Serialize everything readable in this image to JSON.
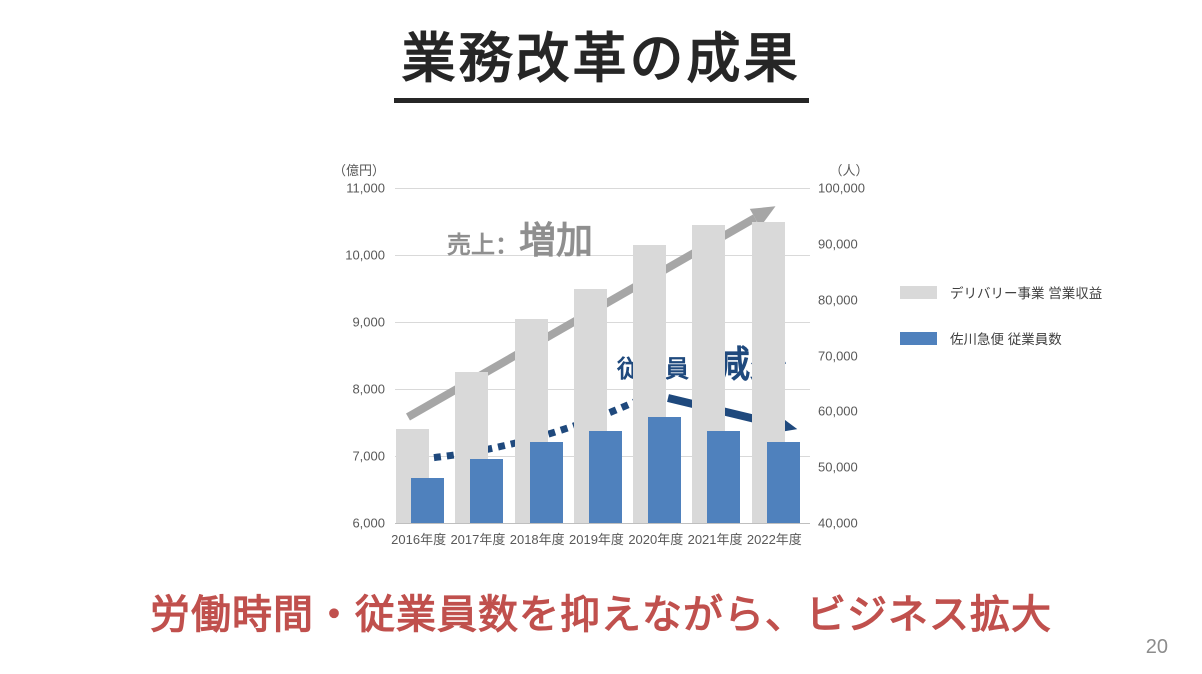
{
  "slide": {
    "title": "業務改革の成果",
    "message": "労働時間・従業員数を抑えながら、ビジネス拡大",
    "page_number": "20"
  },
  "annotations": {
    "sales_prefix": "売上：",
    "sales_emphasis": "増加",
    "employees_prefix": "従業員：",
    "employees_emphasis": "減少"
  },
  "chart_data": {
    "type": "bar",
    "title": "",
    "categories": [
      "2016年度",
      "2017年度",
      "2018年度",
      "2019年度",
      "2020年度",
      "2021年度",
      "2022年度"
    ],
    "series": [
      {
        "name": "デリバリー事業 営業収益",
        "axis": "left",
        "unit": "億円",
        "color": "#d9d9d9",
        "values": [
          7400,
          8250,
          9050,
          9500,
          10150,
          10450,
          10500
        ]
      },
      {
        "name": "佐川急便 従業員数",
        "axis": "right",
        "unit": "人",
        "color": "#4f81bd",
        "values": [
          48000,
          51500,
          54500,
          56500,
          59000,
          56500,
          54500
        ]
      }
    ],
    "left_axis": {
      "unit_label": "（億円）",
      "min": 6000,
      "max": 11000,
      "step": 1000
    },
    "right_axis": {
      "unit_label": "（人）",
      "min": 40000,
      "max": 100000,
      "step": 10000
    },
    "grid": true,
    "legend_position": "right"
  },
  "colors": {
    "title_text": "#262626",
    "revenue_bar": "#d9d9d9",
    "employee_bar": "#4f81bd",
    "sales_annotation_text": "#8f8f8f",
    "sales_arrow": "#a6a6a6",
    "employee_annotation_text": "#1f497d",
    "employee_arrows": "#1f497d",
    "message_text": "#c0504d",
    "axis_text": "#595959",
    "gridline": "#d9d9d9"
  }
}
